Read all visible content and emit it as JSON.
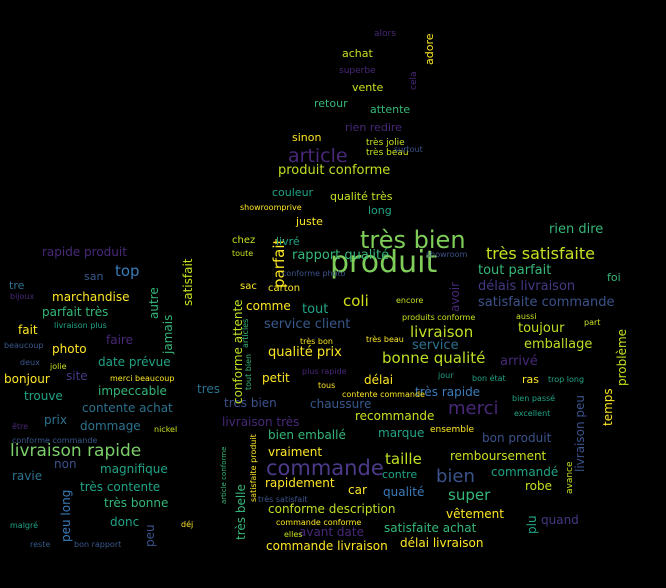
{
  "words": [
    {
      "t": "produit",
      "c": "#7fce5a"
    },
    {
      "t": "très bien",
      "c": "#7fce5a"
    },
    {
      "t": "commande",
      "c": "#4e3a8a"
    },
    {
      "t": "article",
      "c": "#482878"
    },
    {
      "t": "merci",
      "c": "#482878"
    },
    {
      "t": "bien",
      "c": "#3b528b"
    },
    {
      "t": "livraison rapide",
      "c": "#7ccf6a"
    },
    {
      "t": "très satisfaite",
      "c": "#c8e020"
    },
    {
      "t": "coli",
      "c": "#d2e21b"
    },
    {
      "t": "livraison",
      "c": "#c0df25"
    },
    {
      "t": "bonne qualité",
      "c": "#bddf26"
    },
    {
      "t": "taille",
      "c": "#c2df23"
    },
    {
      "t": "super",
      "c": "#35b779"
    },
    {
      "t": "top",
      "c": "#3b7cba"
    },
    {
      "t": "parfait",
      "c": "#fde725"
    },
    {
      "t": "produit conforme",
      "c": "#c2df23"
    },
    {
      "t": "rapport qualité",
      "c": "#35b779"
    },
    {
      "t": "tout parfait",
      "c": "#35b779"
    },
    {
      "t": "rien dire",
      "c": "#35b779"
    },
    {
      "t": "satisfaite commande",
      "c": "#3b528b"
    },
    {
      "t": "délais livraison",
      "c": "#443983"
    },
    {
      "t": "service client",
      "c": "#38598c"
    },
    {
      "t": "tout",
      "c": "#20a486"
    },
    {
      "t": "qualité prix",
      "c": "#fde725"
    },
    {
      "t": "service",
      "c": "#2c728e"
    },
    {
      "t": "arrivé",
      "c": "#482878"
    },
    {
      "t": "emballage",
      "c": "#bddf26"
    },
    {
      "t": "toujour",
      "c": "#c2df23"
    },
    {
      "t": "rapide produit",
      "c": "#482878"
    },
    {
      "t": "marchandise",
      "c": "#fde725"
    },
    {
      "t": "parfait très",
      "c": "#35b779"
    },
    {
      "t": "photo",
      "c": "#fde725"
    },
    {
      "t": "faire",
      "c": "#482878"
    },
    {
      "t": "date prévue",
      "c": "#20a486"
    },
    {
      "t": "fait",
      "c": "#fde725"
    },
    {
      "t": "site",
      "c": "#443983"
    },
    {
      "t": "bonjour",
      "c": "#fde725"
    },
    {
      "t": "trouve",
      "c": "#20a486"
    },
    {
      "t": "impeccable",
      "c": "#35b779"
    },
    {
      "t": "contente achat",
      "c": "#2c728e"
    },
    {
      "t": "prix",
      "c": "#2c728e"
    },
    {
      "t": "dommage",
      "c": "#2c728e"
    },
    {
      "t": "non",
      "c": "#3b528b"
    },
    {
      "t": "ravie",
      "c": "#2c728e"
    },
    {
      "t": "magnifique",
      "c": "#20a486"
    },
    {
      "t": "très contente",
      "c": "#20a486"
    },
    {
      "t": "très bonne",
      "c": "#35b779"
    },
    {
      "t": "donc",
      "c": "#20a486"
    },
    {
      "t": "peu long",
      "c": "#3b7cba"
    },
    {
      "t": "peu",
      "c": "#3b528b"
    },
    {
      "t": "tres bien",
      "c": "#3b528b"
    },
    {
      "t": "chaussure",
      "c": "#38598c"
    },
    {
      "t": "recommande",
      "c": "#c8e020"
    },
    {
      "t": "marque",
      "c": "#20a486"
    },
    {
      "t": "bien emballé",
      "c": "#35b779"
    },
    {
      "t": "livraison très",
      "c": "#482878"
    },
    {
      "t": "vraiment",
      "c": "#fde725"
    },
    {
      "t": "très rapide",
      "c": "#3b7cba"
    },
    {
      "t": "délai",
      "c": "#fde725"
    },
    {
      "t": "petit",
      "c": "#fde725"
    },
    {
      "t": "comme",
      "c": "#fde725"
    },
    {
      "t": "bon produit",
      "c": "#3b528b"
    },
    {
      "t": "remboursement",
      "c": "#c8e020"
    },
    {
      "t": "commandé",
      "c": "#20a486"
    },
    {
      "t": "robe",
      "c": "#c8e020"
    },
    {
      "t": "qualité",
      "c": "#3b7cba"
    },
    {
      "t": "car",
      "c": "#fde725"
    },
    {
      "t": "rapidement",
      "c": "#fde725"
    },
    {
      "t": "conforme description",
      "c": "#c2df23"
    },
    {
      "t": "avant date",
      "c": "#482878"
    },
    {
      "t": "vêtement",
      "c": "#fde725"
    },
    {
      "t": "satisfaite achat",
      "c": "#35b779"
    },
    {
      "t": "quand",
      "c": "#443983"
    },
    {
      "t": "délai livraison",
      "c": "#fde725"
    },
    {
      "t": "commande livraison",
      "c": "#fde725"
    },
    {
      "t": "achat",
      "c": "#c8e020"
    },
    {
      "t": "vente",
      "c": "#c8e020"
    },
    {
      "t": "retour",
      "c": "#35b779"
    },
    {
      "t": "attente",
      "c": "#35b779"
    },
    {
      "t": "rien redire",
      "c": "#482878"
    },
    {
      "t": "sinon",
      "c": "#fde725"
    },
    {
      "t": "couleur",
      "c": "#20a486"
    },
    {
      "t": "qualité très",
      "c": "#c8e020"
    },
    {
      "t": "long",
      "c": "#20a486"
    },
    {
      "t": "juste",
      "c": "#fde725"
    },
    {
      "t": "livré",
      "c": "#20a486"
    },
    {
      "t": "chez",
      "c": "#c8e020"
    },
    {
      "t": "sac",
      "c": "#fde725"
    },
    {
      "t": "carton",
      "c": "#fde725"
    },
    {
      "t": "tre",
      "c": "#2c728e"
    },
    {
      "t": "san",
      "c": "#38598c"
    },
    {
      "t": "foi",
      "c": "#35b779"
    },
    {
      "t": "ras",
      "c": "#fde725"
    },
    {
      "t": "contre",
      "c": "#20a486"
    },
    {
      "t": "ensemble",
      "c": "#fde725"
    },
    {
      "t": "adore",
      "c": "#fde725"
    },
    {
      "t": "alors",
      "c": "#482878"
    },
    {
      "t": "superbe",
      "c": "#482878"
    },
    {
      "t": "cela",
      "c": "#482878"
    },
    {
      "t": "très jolie",
      "c": "#c8e020"
    },
    {
      "t": "très beau",
      "c": "#c8e020"
    },
    {
      "t": "surtout",
      "c": "#3b528b"
    },
    {
      "t": "showroomprive",
      "c": "#fde725"
    },
    {
      "t": "showroom",
      "c": "#3b528b"
    },
    {
      "t": "toute",
      "c": "#c8e020"
    },
    {
      "t": "conforme photo",
      "c": "#3b528b"
    },
    {
      "t": "encore",
      "c": "#c8e020"
    },
    {
      "t": "produits conforme",
      "c": "#c8e020"
    },
    {
      "t": "aussi",
      "c": "#c8e020"
    },
    {
      "t": "part",
      "c": "#c8e020"
    },
    {
      "t": "très bon",
      "c": "#fde725"
    },
    {
      "t": "très beau",
      "c": "#fde725"
    },
    {
      "t": "plus rapide",
      "c": "#482878"
    },
    {
      "t": "tous",
      "c": "#fde725"
    },
    {
      "t": "contente commande",
      "c": "#fde725"
    },
    {
      "t": "jour",
      "c": "#20a486"
    },
    {
      "t": "bon état",
      "c": "#20a486"
    },
    {
      "t": "bien passé",
      "c": "#20a486"
    },
    {
      "t": "excellent",
      "c": "#20a486"
    },
    {
      "t": "trop long",
      "c": "#20a486"
    },
    {
      "t": "bijoux",
      "c": "#482878"
    },
    {
      "t": "livraison plus",
      "c": "#20a486"
    },
    {
      "t": "beaucoup",
      "c": "#38598c"
    },
    {
      "t": "deux",
      "c": "#38598c"
    },
    {
      "t": "jolie",
      "c": "#c8e020"
    },
    {
      "t": "merci beaucoup",
      "c": "#fde725"
    },
    {
      "t": "être",
      "c": "#482878"
    },
    {
      "t": "nickel",
      "c": "#c8e020"
    },
    {
      "t": "conforme commande",
      "c": "#38598c"
    },
    {
      "t": "très satisfait",
      "c": "#3b528b"
    },
    {
      "t": "commande conforme",
      "c": "#fde725"
    },
    {
      "t": "elles",
      "c": "#c8e020"
    },
    {
      "t": "malgré",
      "c": "#20a486"
    },
    {
      "t": "reste",
      "c": "#38598c"
    },
    {
      "t": "bon rapport",
      "c": "#38598c"
    },
    {
      "t": "déj",
      "c": "#fde725"
    },
    {
      "t": "tres",
      "c": "#2c728e"
    },
    {
      "t": "jamais",
      "c": "#35b779"
    },
    {
      "t": "autre",
      "c": "#35b779"
    },
    {
      "t": "satisfait",
      "c": "#c8e020"
    },
    {
      "t": "conforme attente",
      "c": "#c2df23"
    },
    {
      "t": "articles",
      "c": "#35b779"
    },
    {
      "t": "tout bien",
      "c": "#35b779"
    },
    {
      "t": "article conforme",
      "c": "#35b779"
    },
    {
      "t": "très belle",
      "c": "#35b779"
    },
    {
      "t": "satisfaite produit",
      "c": "#fde725"
    },
    {
      "t": "avoir",
      "c": "#482878"
    },
    {
      "t": "livraison peu",
      "c": "#3b528b"
    },
    {
      "t": "problème",
      "c": "#c8e020"
    },
    {
      "t": "temps",
      "c": "#fde725"
    },
    {
      "t": "avance",
      "c": "#c8e020"
    },
    {
      "t": "plu",
      "c": "#20a486"
    }
  ]
}
